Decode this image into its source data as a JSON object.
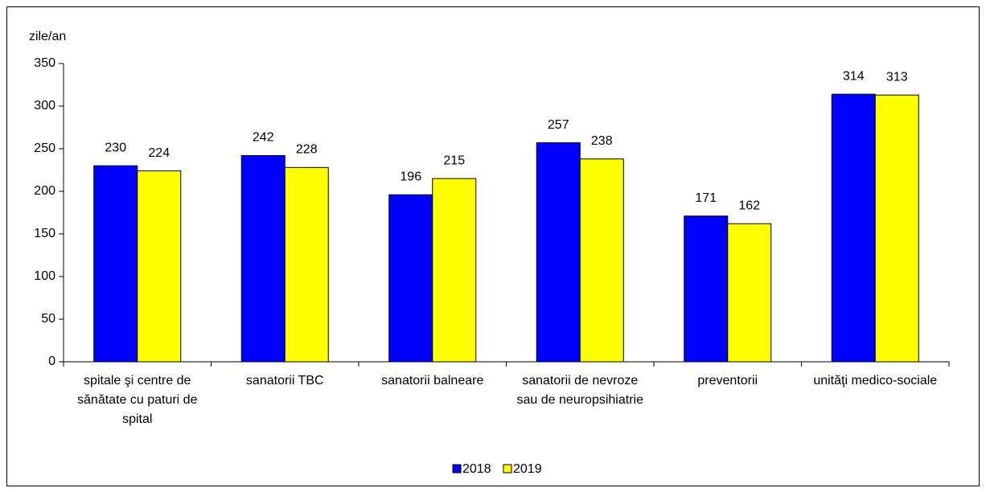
{
  "chart_data": {
    "type": "bar",
    "y_label": "zile/an",
    "categories": [
      "spitale şi centre de sănătate cu paturi de spital",
      "sanatorii TBC",
      "sanatorii balneare",
      "sanatorii de nevroze sau de neuropsihiatrie",
      "preventorii",
      "unităţi medico-sociale"
    ],
    "series": [
      {
        "name": "2018",
        "color": "#0000ff",
        "values": [
          230,
          242,
          196,
          257,
          171,
          314
        ]
      },
      {
        "name": "2019",
        "color": "#ffff00",
        "values": [
          224,
          228,
          215,
          238,
          162,
          313
        ]
      }
    ],
    "ylim": [
      0,
      350
    ],
    "yticks": [
      0,
      50,
      100,
      150,
      200,
      250,
      300,
      350
    ],
    "grid": false,
    "legend": "bottom"
  }
}
